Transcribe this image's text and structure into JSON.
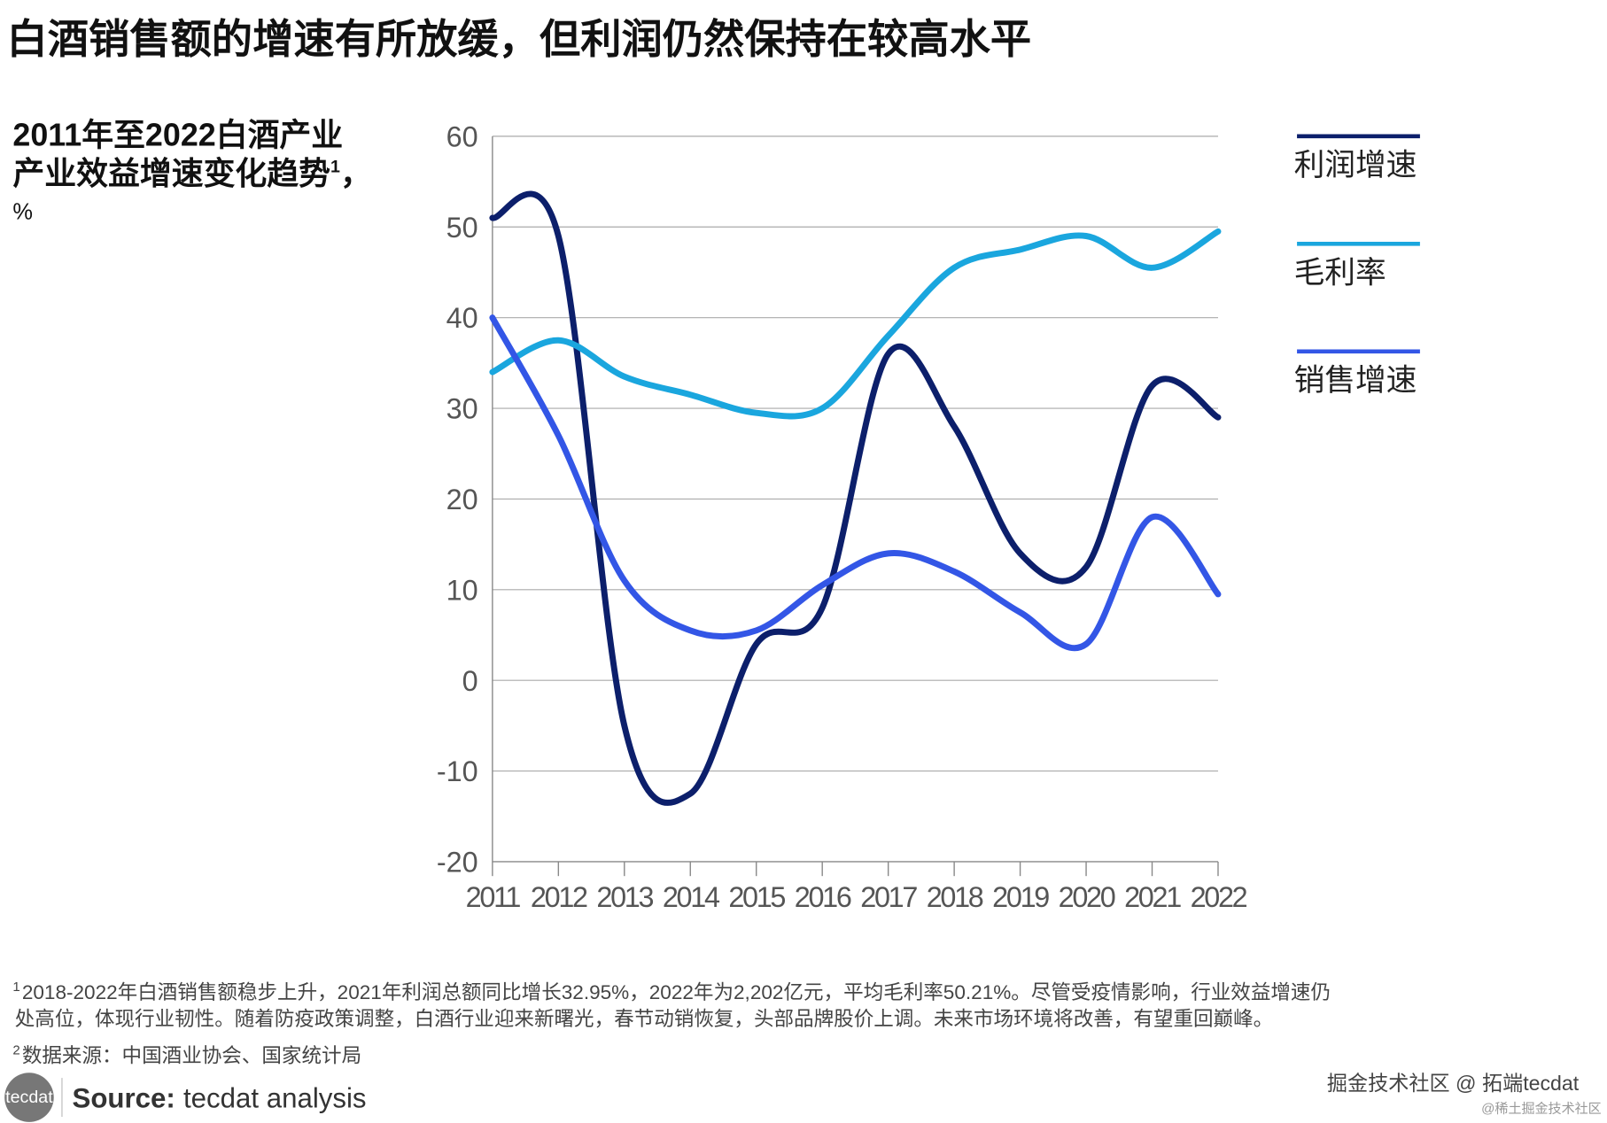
{
  "chart_data": {
    "type": "line",
    "title": "白酒销售额的增速有所放缓，但利润仍然保持在较高水平",
    "subtitle_lines": [
      "2011年至2022白酒产业",
      "产业效益增速变化趋势"
    ],
    "subtitle_note": "1",
    "subtitle_tail": "，",
    "unit": "%",
    "x": [
      2011,
      2012,
      2013,
      2014,
      2015,
      2016,
      2017,
      2018,
      2019,
      2020,
      2021,
      2022
    ],
    "xlim": [
      2011,
      2022
    ],
    "xticks": [
      2011,
      2012,
      2013,
      2014,
      2015,
      2016,
      2017,
      2018,
      2019,
      2020,
      2021,
      2022
    ],
    "ylim": [
      -20,
      60
    ],
    "yticks": [
      -20,
      -10,
      0,
      10,
      20,
      30,
      40,
      50,
      60
    ],
    "grid": true,
    "legend": "right",
    "series": [
      {
        "name": "利润增速",
        "color": "#0c1f6b",
        "values": [
          51,
          49,
          -5,
          -12.5,
          4,
          8,
          36,
          28,
          14,
          12.5,
          32.5,
          29
        ]
      },
      {
        "name": "毛利率",
        "color": "#1aa6de",
        "values": [
          34,
          37.5,
          33.5,
          31.5,
          29.5,
          30,
          38,
          45.5,
          47.5,
          49,
          45.5,
          49.5
        ]
      },
      {
        "name": "销售增速",
        "color": "#3356e6",
        "values": [
          40,
          27,
          11,
          5.5,
          5.5,
          10.5,
          14,
          12,
          7.5,
          4,
          18,
          9.5
        ]
      }
    ],
    "notes": [
      {
        "marker": "1",
        "lines": [
          "2018-2022年白酒销售额稳步上升，2021年利润总额同比增长32.95%，2022年为2,202亿元，平均毛利率50.21%。尽管受疫情影响，行业效益增速仍",
          "处高位，体现行业韧性。随着防疫政策调整，白酒行业迎来新曙光，春节动销恢复，头部品牌股价上调。未来市场环境将改善，有望重回巅峰。"
        ]
      },
      {
        "marker": "2",
        "lines": [
          "数据来源：中国酒业协会、国家统计局"
        ]
      }
    ],
    "logo": "tecdat",
    "source_label": "Source:",
    "source_text": "tecdat analysis",
    "watermark": "掘金技术社区 @ 拓端tecdat",
    "watermark_small": "@稀土掘金技术社区"
  }
}
